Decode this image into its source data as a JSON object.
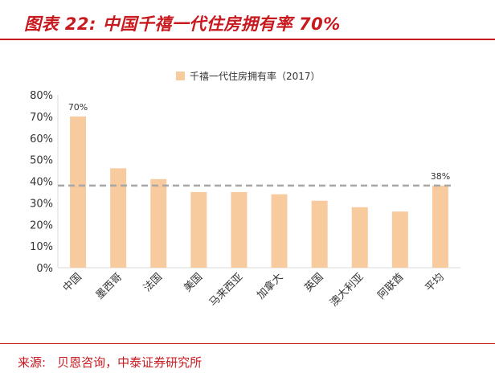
{
  "header": {
    "title": "图表 22:  中国千禧一代住房拥有率 70%"
  },
  "footer": {
    "source_label": "来源:",
    "source_text": "贝恩咨询，中泰证券研究所"
  },
  "colors": {
    "accent": "#c8191f",
    "bar": "#f8cb9f",
    "reference_line": "#a6a6a6",
    "axis": "#d9d9d9"
  },
  "chart_data": {
    "type": "bar",
    "categories": [
      "中国",
      "墨西哥",
      "法国",
      "美国",
      "马来西亚",
      "加拿大",
      "英国",
      "澳大利亚",
      "阿联酋",
      "平均"
    ],
    "series": [
      {
        "name": "千禧一代住房拥有率（2017）",
        "values": [
          70,
          46,
          41,
          35,
          35,
          34,
          31,
          28,
          26,
          38
        ]
      }
    ],
    "ylim": [
      0,
      80
    ],
    "yticks": [
      "0%",
      "10%",
      "20%",
      "30%",
      "40%",
      "50%",
      "60%",
      "70%",
      "80%"
    ],
    "reference_line": {
      "value": 38,
      "label": "38%"
    },
    "data_labels": [
      {
        "index": 0,
        "label": "70%"
      }
    ],
    "legend_position": "top-center",
    "grid": false
  }
}
